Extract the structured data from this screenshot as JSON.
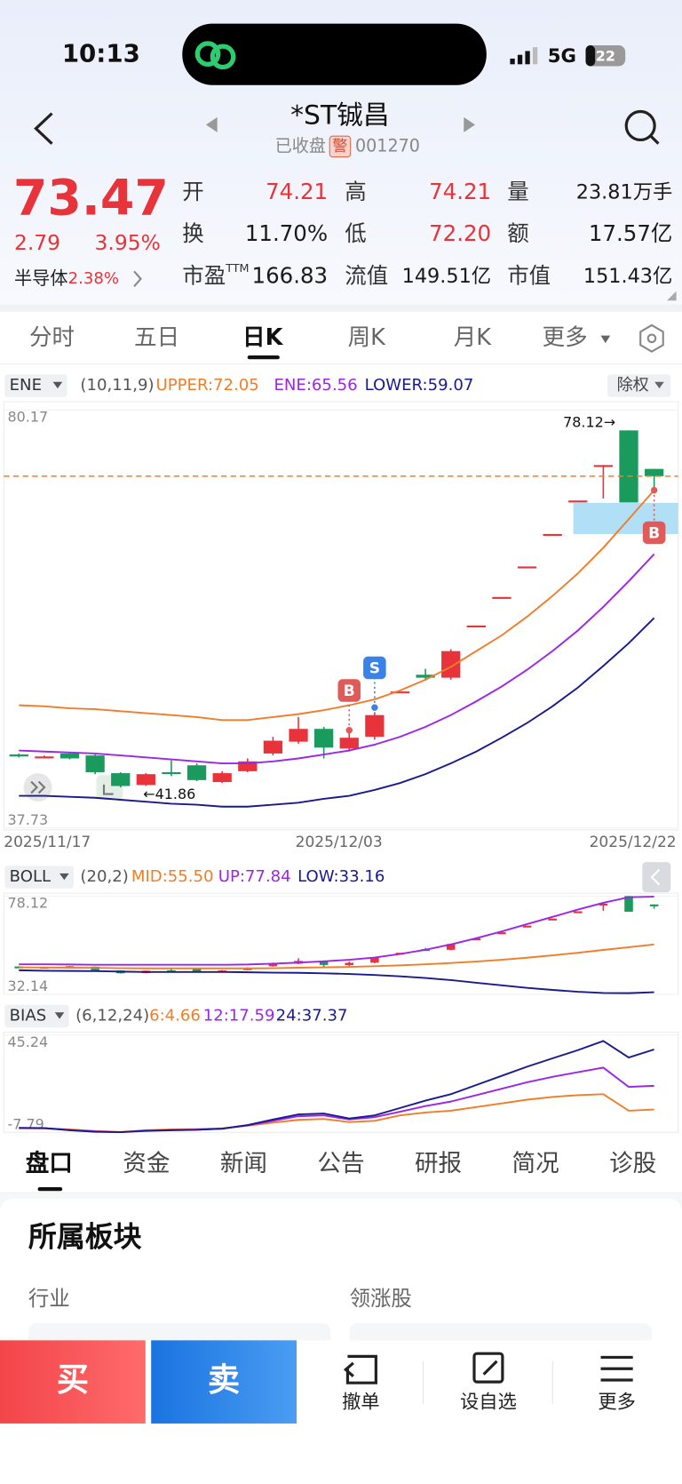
{
  "status": {
    "time": "10:13",
    "network": "5G",
    "battery": "22"
  },
  "header": {
    "title": "*ST铖昌",
    "state": "已收盘",
    "badge": "警",
    "code": "001270"
  },
  "quote": {
    "price": "73.47",
    "change": "2.79",
    "change_pct": "3.95%",
    "sector": "半导体",
    "sector_pct": "2.38%"
  },
  "stats": [
    {
      "label": "开",
      "value": "74.21",
      "color": "#e8333a"
    },
    {
      "label": "高",
      "value": "74.21",
      "color": "#e8333a"
    },
    {
      "label": "量",
      "value": "23.81万手",
      "color": "#1a1a1a"
    },
    {
      "label": "换",
      "value": "11.70%",
      "color": "#1a1a1a"
    },
    {
      "label": "低",
      "value": "72.20",
      "color": "#e8333a"
    },
    {
      "label": "额",
      "value": "17.57亿",
      "color": "#1a1a1a"
    },
    {
      "label": "市盈",
      "sup": "TTM",
      "value": "166.83",
      "color": "#1a1a1a"
    },
    {
      "label": "流值",
      "value": "149.51亿",
      "color": "#1a1a1a"
    },
    {
      "label": "市值",
      "value": "151.43亿",
      "color": "#1a1a1a"
    }
  ],
  "period_tabs": [
    "分时",
    "五日",
    "日K",
    "周K",
    "月K",
    "更多"
  ],
  "adjust_button": "除权",
  "chart_data": [
    {
      "type": "candlestick",
      "indicator": "ENE",
      "params": "(10,11,9)",
      "legend": [
        "UPPER:72.05",
        "ENE:65.56",
        "LOWER:59.07"
      ],
      "categories": [
        "2025/11/17",
        null,
        null,
        null,
        null,
        null,
        null,
        null,
        null,
        null,
        null,
        null,
        "2025/12/03",
        null,
        null,
        null,
        null,
        null,
        null,
        null,
        null,
        null,
        null,
        null,
        null,
        "2025/12/22"
      ],
      "open": [
        45.2,
        44.9,
        45.3,
        45.1,
        43.3,
        42.1,
        43.4,
        44.1,
        42.4,
        43.5,
        45.3,
        46.5,
        47.8,
        45.8,
        47.0,
        51.6,
        53.3,
        53.0,
        58.3,
        61.2,
        64.3,
        67.6,
        71.0,
        74.5,
        78.12,
        74.21
      ],
      "close": [
        45.0,
        45.0,
        44.8,
        43.4,
        42.0,
        43.2,
        43.3,
        42.6,
        43.3,
        44.5,
        46.6,
        47.8,
        45.9,
        46.9,
        49.2,
        51.6,
        53.0,
        55.7,
        58.3,
        61.2,
        64.3,
        67.6,
        71.0,
        74.6,
        70.8,
        73.47
      ],
      "high": [
        45.3,
        45.1,
        45.4,
        45.2,
        43.4,
        43.3,
        44.6,
        44.3,
        43.5,
        44.8,
        47.0,
        49.0,
        48.0,
        47.5,
        49.5,
        51.6,
        53.9,
        55.9,
        58.3,
        61.2,
        64.3,
        67.6,
        71.0,
        74.6,
        78.12,
        74.21
      ],
      "low": [
        44.9,
        44.8,
        44.7,
        43.2,
        41.86,
        42.0,
        43.0,
        42.5,
        42.3,
        43.4,
        45.1,
        46.3,
        44.8,
        45.5,
        46.7,
        51.6,
        52.7,
        52.8,
        58.3,
        61.2,
        64.3,
        67.6,
        71.0,
        71.2,
        70.8,
        72.2
      ],
      "up_color": "#e8333a",
      "down_color": "#1a9a5c",
      "series": [
        {
          "name": "UPPER",
          "color": "#f07d2a",
          "values": [
            50.2,
            50.1,
            49.9,
            49.8,
            49.6,
            49.4,
            49.2,
            49.0,
            48.7,
            48.7,
            49.0,
            49.3,
            49.7,
            50.2,
            50.8,
            51.7,
            52.8,
            54.1,
            55.7,
            57.3,
            59.2,
            61.3,
            63.6,
            66.2,
            69.1,
            72.05
          ]
        },
        {
          "name": "ENE",
          "color": "#9b26e6",
          "values": [
            45.6,
            45.5,
            45.4,
            45.3,
            45.1,
            44.9,
            44.7,
            44.5,
            44.3,
            44.3,
            44.5,
            44.8,
            45.2,
            45.6,
            46.2,
            47.0,
            48.0,
            49.2,
            50.6,
            52.1,
            53.8,
            55.7,
            57.8,
            60.2,
            62.8,
            65.56
          ]
        },
        {
          "name": "LOWER",
          "color": "#1a1a8c",
          "values": [
            41.0,
            41.0,
            40.9,
            40.8,
            40.6,
            40.4,
            40.2,
            40.1,
            39.9,
            39.9,
            40.1,
            40.3,
            40.7,
            41.0,
            41.6,
            42.3,
            43.2,
            44.3,
            45.5,
            46.9,
            48.4,
            50.1,
            52.0,
            54.2,
            56.5,
            59.07
          ]
        }
      ],
      "price_line": 73.47,
      "high_label": "78.12→",
      "low_label": "←41.86",
      "signals": [
        {
          "label": "B",
          "index": 13,
          "side": "above",
          "color": "#e05a5a"
        },
        {
          "label": "S",
          "index": 14,
          "side": "above",
          "color": "#3b82e8"
        },
        {
          "label": "B",
          "index": 25,
          "side": "below",
          "color": "#e05a5a"
        }
      ],
      "ylim": [
        37.73,
        80.17
      ],
      "yticks": [
        37.73,
        80.17
      ]
    },
    {
      "type": "candlestick",
      "indicator": "BOLL",
      "params": "(20,2)",
      "legend": [
        "MID:55.50",
        "UP:77.84",
        "LOW:33.16"
      ],
      "series": [
        {
          "name": "MID",
          "color": "#f07d2a",
          "values": [
            44.8,
            44.7,
            44.6,
            44.5,
            44.4,
            44.3,
            44.3,
            44.3,
            44.3,
            44.3,
            44.4,
            44.6,
            44.8,
            45.0,
            45.3,
            45.7,
            46.2,
            46.8,
            47.5,
            48.3,
            49.3,
            50.4,
            51.6,
            52.9,
            54.2,
            55.5
          ]
        },
        {
          "name": "UP",
          "color": "#9b26e6",
          "values": [
            46.2,
            46.2,
            46.1,
            46.0,
            46.0,
            46.0,
            46.0,
            46.0,
            46.0,
            46.1,
            46.5,
            47.0,
            47.6,
            48.3,
            49.4,
            51.0,
            53.0,
            55.5,
            58.4,
            61.6,
            65.0,
            68.4,
            71.8,
            75.0,
            77.6,
            77.84
          ]
        },
        {
          "name": "LOW",
          "color": "#1a1a8c",
          "values": [
            43.4,
            43.2,
            43.1,
            43.0,
            42.8,
            42.6,
            42.6,
            42.6,
            42.6,
            42.5,
            42.3,
            42.2,
            42.0,
            41.7,
            41.2,
            40.6,
            39.8,
            38.8,
            37.6,
            36.4,
            35.2,
            34.2,
            33.4,
            32.8,
            32.7,
            33.16
          ]
        }
      ],
      "ylim": [
        32.14,
        78.12
      ],
      "yticks": [
        32.14,
        78.12
      ]
    },
    {
      "type": "line",
      "indicator": "BIAS",
      "params": "(6,12,24)",
      "legend": [
        "6:4.66",
        "12:17.59",
        "24:37.37"
      ],
      "series": [
        {
          "name": "6",
          "color": "#f07d2a",
          "values": [
            -5.5,
            -5.6,
            -6.2,
            -7.0,
            -7.6,
            -6.6,
            -6.2,
            -6.0,
            -5.6,
            -4.2,
            -2.5,
            -1.0,
            -0.5,
            -2.2,
            -1.5,
            1.5,
            3.0,
            4.0,
            6.0,
            8.0,
            10.0,
            11.5,
            12.5,
            13.0,
            4.0,
            4.66
          ]
        },
        {
          "name": "12",
          "color": "#9b26e6",
          "values": [
            -5.4,
            -5.5,
            -6.5,
            -7.3,
            -7.7,
            -6.8,
            -6.5,
            -6.3,
            -5.8,
            -4.0,
            -1.5,
            1.0,
            1.5,
            -0.8,
            0.5,
            3.5,
            6.5,
            9.0,
            12.5,
            16.0,
            19.5,
            22.5,
            25.0,
            27.5,
            17.0,
            17.59
          ]
        },
        {
          "name": "24",
          "color": "#1a1a8c",
          "values": [
            -5.3,
            -5.4,
            -6.6,
            -7.5,
            -7.7,
            -7.0,
            -6.6,
            -6.4,
            -5.8,
            -3.8,
            -0.8,
            2.0,
            2.5,
            -0.2,
            1.5,
            5.5,
            9.5,
            13.0,
            18.0,
            23.0,
            28.0,
            32.5,
            37.0,
            42.0,
            33.0,
            37.37
          ]
        }
      ],
      "ylim": [
        -7.79,
        45.24
      ],
      "yticks": [
        -7.79,
        45.24
      ]
    }
  ],
  "detail_tabs": [
    "盘口",
    "资金",
    "新闻",
    "公告",
    "研报",
    "简况",
    "诊股"
  ],
  "section": {
    "title": "所属板块",
    "col1": "行业",
    "col2": "领涨股"
  },
  "actions": {
    "buy": "买",
    "sell": "卖",
    "cancel": "撤单",
    "watch": "设自选",
    "more": "更多"
  }
}
